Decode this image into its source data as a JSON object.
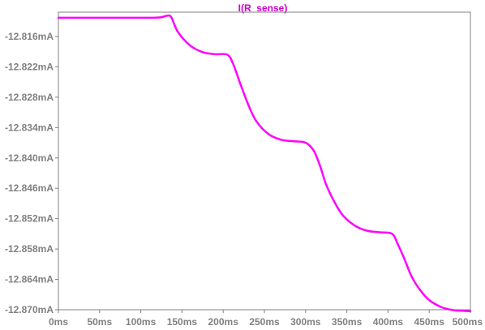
{
  "chart_data": {
    "type": "line",
    "title": "I(R_sense)",
    "xlabel": "",
    "ylabel": "",
    "x_unit": "ms",
    "y_unit": "mA",
    "xlim": [
      0,
      500
    ],
    "ylim": [
      -12.87,
      -12.812
    ],
    "x_ticks": [
      0,
      50,
      100,
      150,
      200,
      250,
      300,
      350,
      400,
      450,
      500
    ],
    "x_tick_labels": [
      "0ms",
      "50ms",
      "100ms",
      "150ms",
      "200ms",
      "250ms",
      "300ms",
      "350ms",
      "400ms",
      "450ms",
      "500ms"
    ],
    "y_ticks": [
      -12.816,
      -12.822,
      -12.828,
      -12.834,
      -12.84,
      -12.846,
      -12.852,
      -12.858,
      -12.864,
      -12.87
    ],
    "y_tick_labels": [
      "-12.816mA",
      "-12.822mA",
      "-12.828mA",
      "-12.834mA",
      "-12.840mA",
      "-12.846mA",
      "-12.852mA",
      "-12.858mA",
      "-12.864mA",
      "-12.870mA"
    ],
    "grid": false,
    "colors": {
      "trace": "#ff00ff",
      "title": "#cc00cc",
      "frame": "#808080",
      "ticks": "#808080"
    },
    "series": [
      {
        "name": "I(R_sense)",
        "x": [
          0,
          50,
          100,
          115,
          125,
          132,
          137,
          145,
          160,
          175,
          190,
          205,
          212,
          220,
          230,
          240,
          255,
          270,
          285,
          300,
          310,
          318,
          325,
          335,
          345,
          360,
          375,
          390,
          405,
          412,
          420,
          428,
          438,
          450,
          465,
          480,
          490,
          500
        ],
        "y": [
          -12.8123,
          -12.8123,
          -12.8123,
          -12.8123,
          -12.8122,
          -12.8119,
          -12.8122,
          -12.8151,
          -12.8178,
          -12.8191,
          -12.8195,
          -12.8196,
          -12.8214,
          -12.825,
          -12.8293,
          -12.8327,
          -12.8353,
          -12.8364,
          -12.8367,
          -12.837,
          -12.8386,
          -12.8418,
          -12.8453,
          -12.8487,
          -12.8513,
          -12.8534,
          -12.8544,
          -12.8547,
          -12.855,
          -12.8571,
          -12.86,
          -12.8632,
          -12.8659,
          -12.8681,
          -12.8695,
          -12.8701,
          -12.8702,
          -12.8703
        ]
      }
    ]
  }
}
